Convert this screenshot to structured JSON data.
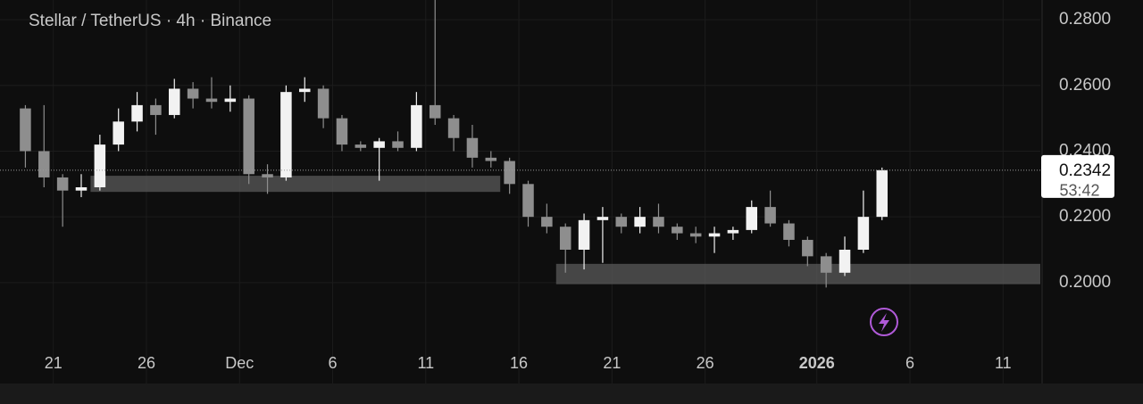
{
  "chart_data": {
    "type": "candlestick",
    "title": "Stellar / TetherUS · 4h · Binance",
    "x": [
      "2025-11-19",
      "2025-11-20",
      "2025-11-21",
      "2025-11-22",
      "2025-11-23",
      "2025-11-24",
      "2025-11-25",
      "2025-11-26",
      "2025-11-27",
      "2025-11-28",
      "2025-11-29",
      "2025-11-30",
      "2025-12-01",
      "2025-12-02",
      "2025-12-03",
      "2025-12-04",
      "2025-12-05",
      "2025-12-06",
      "2025-12-07",
      "2025-12-08",
      "2025-12-09",
      "2025-12-10",
      "2025-12-11",
      "2025-12-12",
      "2025-12-13",
      "2025-12-14",
      "2025-12-15",
      "2025-12-16",
      "2025-12-17",
      "2025-12-18",
      "2025-12-19",
      "2025-12-20",
      "2025-12-21",
      "2025-12-22",
      "2025-12-23",
      "2025-12-24",
      "2025-12-25",
      "2025-12-26",
      "2025-12-27",
      "2025-12-28",
      "2025-12-29",
      "2025-12-30",
      "2025-12-31",
      "2026-01-01",
      "2026-01-02",
      "2026-01-03",
      "2026-01-04"
    ],
    "open": [
      0.253,
      0.24,
      0.232,
      0.228,
      0.229,
      0.242,
      0.249,
      0.254,
      0.251,
      0.259,
      0.256,
      0.255,
      0.256,
      0.233,
      0.232,
      0.258,
      0.259,
      0.25,
      0.242,
      0.241,
      0.243,
      0.241,
      0.254,
      0.25,
      0.244,
      0.238,
      0.237,
      0.23,
      0.22,
      0.217,
      0.21,
      0.219,
      0.22,
      0.217,
      0.22,
      0.217,
      0.215,
      0.214,
      0.215,
      0.216,
      0.223,
      0.218,
      0.213,
      0.208,
      0.203,
      0.21,
      0.22
    ],
    "high": [
      0.254,
      0.254,
      0.233,
      0.233,
      0.245,
      0.253,
      0.258,
      0.256,
      0.262,
      0.261,
      0.2625,
      0.26,
      0.257,
      0.236,
      0.26,
      0.2625,
      0.26,
      0.251,
      0.243,
      0.244,
      0.246,
      0.258,
      0.286,
      0.251,
      0.248,
      0.24,
      0.238,
      0.231,
      0.224,
      0.218,
      0.221,
      0.223,
      0.221,
      0.223,
      0.224,
      0.218,
      0.217,
      0.217,
      0.217,
      0.225,
      0.228,
      0.219,
      0.214,
      0.209,
      0.214,
      0.228,
      0.235
    ],
    "low": [
      0.235,
      0.229,
      0.217,
      0.226,
      0.228,
      0.24,
      0.246,
      0.245,
      0.25,
      0.253,
      0.253,
      0.252,
      0.23,
      0.227,
      0.231,
      0.255,
      0.247,
      0.24,
      0.24,
      0.231,
      0.24,
      0.24,
      0.248,
      0.24,
      0.235,
      0.235,
      0.227,
      0.217,
      0.215,
      0.203,
      0.204,
      0.206,
      0.215,
      0.215,
      0.215,
      0.213,
      0.212,
      0.209,
      0.213,
      0.215,
      0.217,
      0.211,
      0.205,
      0.1985,
      0.202,
      0.209,
      0.219
    ],
    "close": [
      0.24,
      0.232,
      0.228,
      0.229,
      0.242,
      0.249,
      0.254,
      0.251,
      0.259,
      0.256,
      0.255,
      0.256,
      0.233,
      0.232,
      0.258,
      0.259,
      0.25,
      0.242,
      0.241,
      0.243,
      0.241,
      0.254,
      0.25,
      0.244,
      0.238,
      0.237,
      0.23,
      0.22,
      0.217,
      0.21,
      0.219,
      0.22,
      0.217,
      0.22,
      0.217,
      0.215,
      0.214,
      0.215,
      0.216,
      0.223,
      0.218,
      0.213,
      0.208,
      0.203,
      0.21,
      0.22,
      0.2342
    ],
    "up_color": "#f2f2f2",
    "down_color": "#8e8e8e",
    "zones": [
      {
        "start": "2025-11-23",
        "end": "2025-12-15",
        "low": 0.2276,
        "high": 0.2325
      },
      {
        "start": "2025-12-18",
        "end": "2026-01-13",
        "low": 0.1995,
        "high": 0.2057
      }
    ],
    "last_price": 0.2342,
    "countdown": "53:42",
    "xlim": [
      "2025-11-19",
      "2026-01-13"
    ],
    "xticks": [
      {
        "value": "2025-11-21",
        "label": "21"
      },
      {
        "value": "2025-11-26",
        "label": "26"
      },
      {
        "value": "2025-12-01",
        "label": "Dec"
      },
      {
        "value": "2025-12-06",
        "label": "6"
      },
      {
        "value": "2025-12-11",
        "label": "11"
      },
      {
        "value": "2025-12-16",
        "label": "16"
      },
      {
        "value": "2025-12-21",
        "label": "21"
      },
      {
        "value": "2025-12-26",
        "label": "26"
      },
      {
        "value": "2026-01-01",
        "label": "2026"
      },
      {
        "value": "2026-01-06",
        "label": "6"
      },
      {
        "value": "2026-01-11",
        "label": "11"
      }
    ],
    "ylim": [
      0.1815,
      0.286
    ],
    "yticks": [
      {
        "value": 0.2,
        "label": "0.2000"
      },
      {
        "value": 0.22,
        "label": "0.2200"
      },
      {
        "value": 0.24,
        "label": "0.2400"
      },
      {
        "value": 0.26,
        "label": "0.2600"
      },
      {
        "value": 0.28,
        "label": "0.2800"
      }
    ],
    "grid": true
  }
}
